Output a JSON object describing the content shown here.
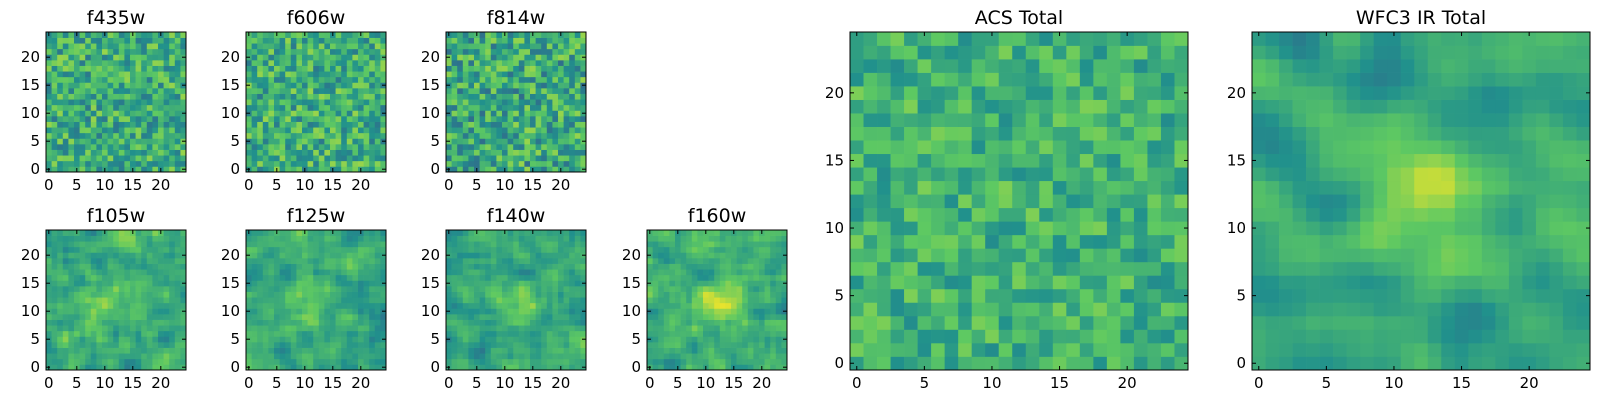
{
  "chart_data": [
    {
      "type": "heatmap",
      "title": "f435w",
      "grid": [
        25,
        25
      ],
      "xlim": [
        0,
        25
      ],
      "ylim": [
        0,
        25
      ],
      "xticks": [
        0,
        5,
        10,
        15,
        20
      ],
      "yticks": [
        0,
        5,
        10,
        15,
        20
      ],
      "seed": 435,
      "smoothing": 0,
      "center_peak": 0.0,
      "mean": 0.62,
      "spread": 0.22,
      "colormap": "viridis"
    },
    {
      "type": "heatmap",
      "title": "f606w",
      "grid": [
        25,
        25
      ],
      "xlim": [
        0,
        25
      ],
      "ylim": [
        0,
        25
      ],
      "xticks": [
        0,
        5,
        10,
        15,
        20
      ],
      "yticks": [
        0,
        5,
        10,
        15,
        20
      ],
      "seed": 606,
      "smoothing": 0,
      "center_peak": 0.0,
      "mean": 0.62,
      "spread": 0.22,
      "colormap": "viridis"
    },
    {
      "type": "heatmap",
      "title": "f814w",
      "grid": [
        25,
        25
      ],
      "xlim": [
        0,
        25
      ],
      "ylim": [
        0,
        25
      ],
      "xticks": [
        0,
        5,
        10,
        15,
        20
      ],
      "yticks": [
        0,
        5,
        10,
        15,
        20
      ],
      "seed": 814,
      "smoothing": 0,
      "center_peak": 0.0,
      "mean": 0.6,
      "spread": 0.24,
      "colormap": "viridis"
    },
    {
      "type": "heatmap",
      "title": "f105w",
      "grid": [
        25,
        25
      ],
      "xlim": [
        0,
        25
      ],
      "ylim": [
        0,
        25
      ],
      "xticks": [
        0,
        5,
        10,
        15,
        20
      ],
      "yticks": [
        0,
        5,
        10,
        15,
        20
      ],
      "seed": 105,
      "smoothing": 1,
      "center_peak": 0.22,
      "mean": 0.62,
      "spread": 0.2,
      "colormap": "viridis"
    },
    {
      "type": "heatmap",
      "title": "f125w",
      "grid": [
        25,
        25
      ],
      "xlim": [
        0,
        25
      ],
      "ylim": [
        0,
        25
      ],
      "xticks": [
        0,
        5,
        10,
        15,
        20
      ],
      "yticks": [
        0,
        5,
        10,
        15,
        20
      ],
      "seed": 125,
      "smoothing": 1,
      "center_peak": 0.15,
      "mean": 0.6,
      "spread": 0.2,
      "colormap": "viridis"
    },
    {
      "type": "heatmap",
      "title": "f140w",
      "grid": [
        25,
        25
      ],
      "xlim": [
        0,
        25
      ],
      "ylim": [
        0,
        25
      ],
      "xticks": [
        0,
        5,
        10,
        15,
        20
      ],
      "yticks": [
        0,
        5,
        10,
        15,
        20
      ],
      "seed": 140,
      "smoothing": 1,
      "center_peak": 0.15,
      "mean": 0.6,
      "spread": 0.2,
      "colormap": "viridis"
    },
    {
      "type": "heatmap",
      "title": "f160w",
      "grid": [
        25,
        25
      ],
      "xlim": [
        0,
        25
      ],
      "ylim": [
        0,
        25
      ],
      "xticks": [
        0,
        5,
        10,
        15,
        20
      ],
      "yticks": [
        0,
        5,
        10,
        15,
        20
      ],
      "seed": 160,
      "smoothing": 1,
      "center_peak": 0.28,
      "mean": 0.6,
      "spread": 0.2,
      "colormap": "viridis"
    },
    {
      "type": "heatmap",
      "title": "ACS Total",
      "grid": [
        25,
        25
      ],
      "xlim": [
        0,
        25
      ],
      "ylim": [
        0,
        25
      ],
      "xticks": [
        0,
        5,
        10,
        15,
        20
      ],
      "yticks": [
        0,
        5,
        10,
        15,
        20
      ],
      "seed": 777,
      "smoothing": 0,
      "center_peak": 0.0,
      "mean": 0.64,
      "spread": 0.16,
      "colormap": "viridis"
    },
    {
      "type": "heatmap",
      "title": "WFC3 IR Total",
      "grid": [
        25,
        25
      ],
      "xlim": [
        0,
        25
      ],
      "ylim": [
        0,
        25
      ],
      "xticks": [
        0,
        5,
        10,
        15,
        20
      ],
      "yticks": [
        0,
        5,
        10,
        15,
        20
      ],
      "seed": 999,
      "smoothing": 2,
      "center_peak": 0.32,
      "mean": 0.58,
      "spread": 0.16,
      "colormap": "viridis"
    }
  ]
}
